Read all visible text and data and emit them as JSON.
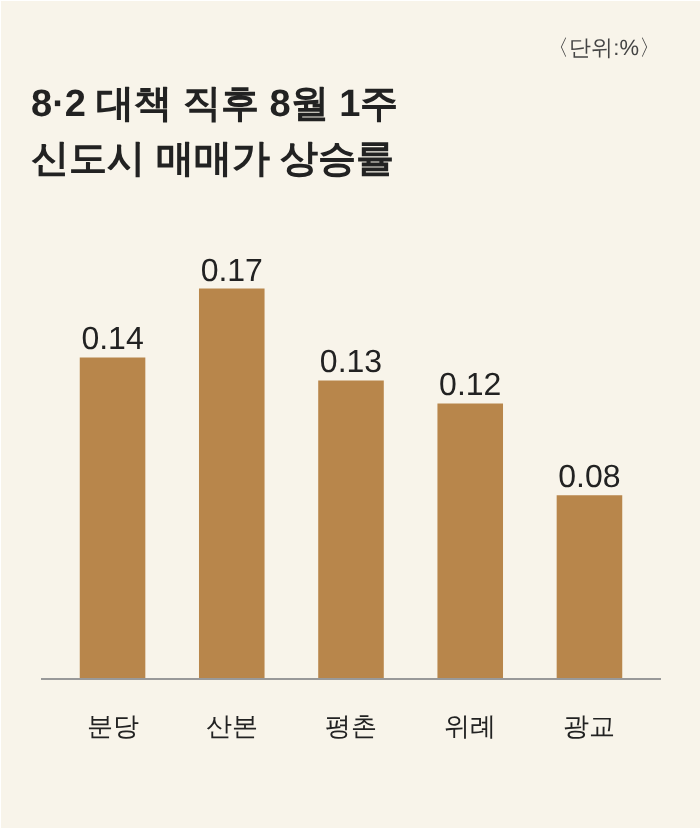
{
  "chart_data": {
    "type": "bar",
    "title": "8·2 대책 직후 8월 1주\n신도시 매매가 상승률",
    "annotations": [
      "〈단위:%〉"
    ],
    "categories": [
      "분당",
      "산본",
      "평촌",
      "위례",
      "광교"
    ],
    "values": [
      0.14,
      0.17,
      0.13,
      0.12,
      0.08
    ],
    "color": "#b8864b",
    "data_labels": true,
    "grid": false
  }
}
